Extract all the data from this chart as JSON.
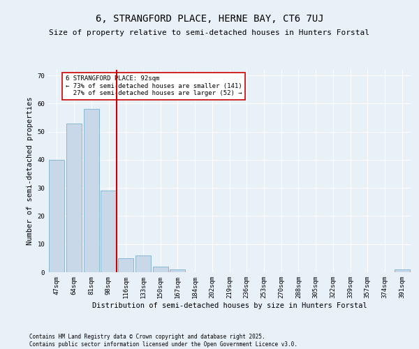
{
  "title": "6, STRANGFORD PLACE, HERNE BAY, CT6 7UJ",
  "subtitle": "Size of property relative to semi-detached houses in Hunters Forstal",
  "xlabel": "Distribution of semi-detached houses by size in Hunters Forstal",
  "ylabel": "Number of semi-detached properties",
  "categories": [
    "47sqm",
    "64sqm",
    "81sqm",
    "98sqm",
    "116sqm",
    "133sqm",
    "150sqm",
    "167sqm",
    "184sqm",
    "202sqm",
    "219sqm",
    "236sqm",
    "253sqm",
    "270sqm",
    "288sqm",
    "305sqm",
    "322sqm",
    "339sqm",
    "357sqm",
    "374sqm",
    "391sqm"
  ],
  "values": [
    40,
    53,
    58,
    29,
    5,
    6,
    2,
    1,
    0,
    0,
    0,
    0,
    0,
    0,
    0,
    0,
    0,
    0,
    0,
    0,
    1
  ],
  "bar_color": "#c8d8e8",
  "bar_edge_color": "#7ab0d0",
  "highlight_line_color": "#cc0000",
  "annotation_text": "6 STRANGFORD PLACE: 92sqm\n← 73% of semi-detached houses are smaller (141)\n  27% of semi-detached houses are larger (52) →",
  "annotation_box_color": "#ffffff",
  "annotation_box_edge": "#cc0000",
  "ylim": [
    0,
    72
  ],
  "yticks": [
    0,
    10,
    20,
    30,
    40,
    50,
    60,
    70
  ],
  "background_color": "#e8f0f8",
  "footer_text": "Contains HM Land Registry data © Crown copyright and database right 2025.\nContains public sector information licensed under the Open Government Licence v3.0.",
  "title_fontsize": 10,
  "subtitle_fontsize": 8,
  "xlabel_fontsize": 7.5,
  "ylabel_fontsize": 7.5,
  "tick_fontsize": 6.5,
  "annotation_fontsize": 6.5,
  "footer_fontsize": 5.5
}
